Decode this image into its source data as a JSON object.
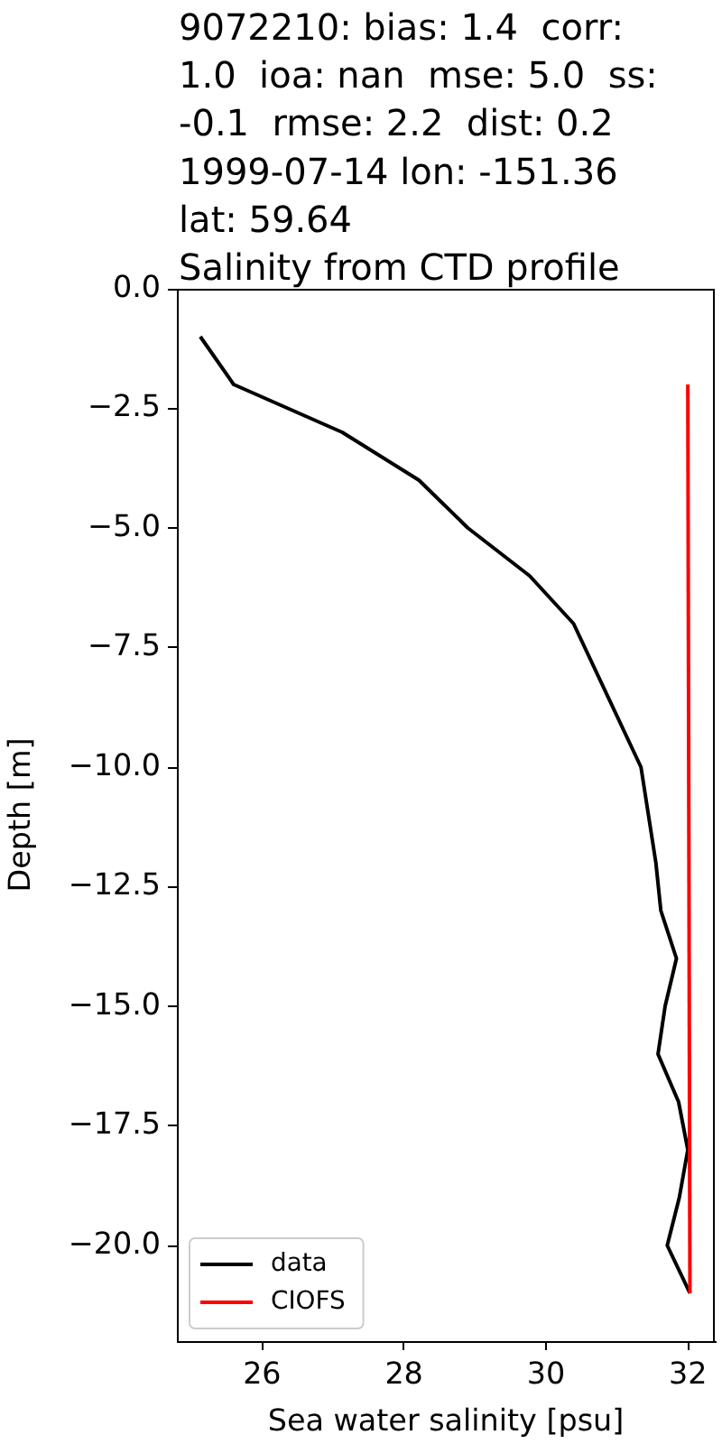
{
  "chart_data": {
    "type": "line",
    "title": "9072210: bias: 1.4  corr:\n1.0  ioa: nan  mse: 5.0  ss:\n-0.1  rmse: 2.2  dist: 0.2\n1999-07-14 lon: -151.36\nlat: 59.64\nSalinity from CTD profile",
    "xlabel": "Sea water salinity [psu]",
    "ylabel": "Depth [m]",
    "series": [
      {
        "name": "data",
        "color": "#000000",
        "x": [
          25.13,
          25.6,
          27.13,
          28.21,
          28.9,
          29.77,
          30.39,
          31.34,
          31.55,
          31.62,
          31.84,
          31.68,
          31.58,
          31.87,
          32.0,
          31.88,
          31.71,
          32.03
        ],
        "values": [
          -1,
          -2,
          -3,
          -4,
          -5,
          -6,
          -7,
          -10,
          -12,
          -13,
          -14,
          -15,
          -16,
          -17,
          -18,
          -19,
          -20,
          -21
        ]
      },
      {
        "name": "CIOFS",
        "color": "#ff0000",
        "x": [
          32.0,
          32.03
        ],
        "values": [
          -2,
          -21
        ]
      }
    ],
    "xlim": [
      24.8,
      32.38
    ],
    "xticks": [
      26,
      28,
      30,
      32
    ],
    "ylim": [
      -22,
      0
    ],
    "yticks": [
      {
        "value": 0,
        "label": "0.0"
      },
      {
        "value": -2.5,
        "label": "−2.5"
      },
      {
        "value": -5,
        "label": "−5.0"
      },
      {
        "value": -7.5,
        "label": "−7.5"
      },
      {
        "value": -10,
        "label": "−10.0"
      },
      {
        "value": -12.5,
        "label": "−12.5"
      },
      {
        "value": -15,
        "label": "−15.0"
      },
      {
        "value": -17.5,
        "label": "−17.5"
      },
      {
        "value": -20,
        "label": "−20.0"
      }
    ],
    "grid": false,
    "legend": "bottom left",
    "marker": "none",
    "line_style": "solid"
  }
}
